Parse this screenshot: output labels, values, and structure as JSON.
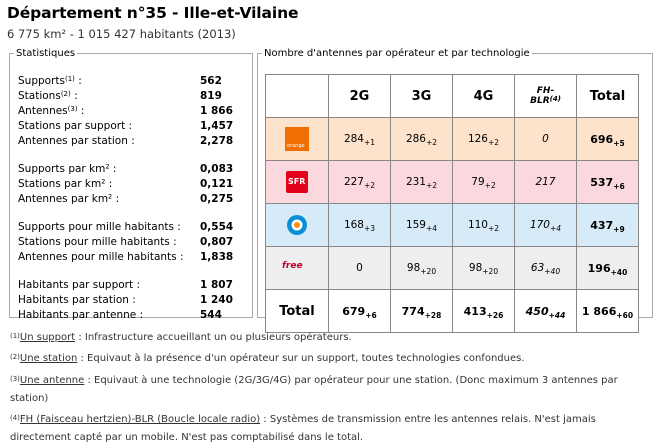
{
  "header": {
    "title": "Département n°35 - Ille-et-Vilaine",
    "subtitle": "6 775 km² - 1 015 427 habitants (2013)"
  },
  "stats": {
    "legend": "Statistiques",
    "rows": [
      {
        "label": "Supports",
        "sup": "(1)",
        "suffix": " :",
        "value": "562"
      },
      {
        "label": "Stations",
        "sup": "(2)",
        "suffix": " :",
        "value": "819"
      },
      {
        "label": "Antennes",
        "sup": "(3)",
        "suffix": " :",
        "value": "1 866"
      },
      {
        "label": "Stations par support :",
        "sup": "",
        "suffix": "",
        "value": "1,457"
      },
      {
        "label": "Antennes par station :",
        "sup": "",
        "suffix": "",
        "value": "2,278"
      },
      {
        "label": "Supports par km² :",
        "sup": "",
        "suffix": "",
        "value": "0,083"
      },
      {
        "label": "Stations par km² :",
        "sup": "",
        "suffix": "",
        "value": "0,121"
      },
      {
        "label": "Antennes par km² :",
        "sup": "",
        "suffix": "",
        "value": "0,275"
      },
      {
        "label": "Supports pour mille habitants :",
        "sup": "",
        "suffix": "",
        "value": "0,554"
      },
      {
        "label": "Stations pour mille habitants :",
        "sup": "",
        "suffix": "",
        "value": "0,807"
      },
      {
        "label": "Antennes pour mille habitants :",
        "sup": "",
        "suffix": "",
        "value": "1,838"
      },
      {
        "label": "Habitants par support :",
        "sup": "",
        "suffix": "",
        "value": "1 807"
      },
      {
        "label": "Habitants par station :",
        "sup": "",
        "suffix": "",
        "value": "1 240"
      },
      {
        "label": "Habitants par antenne :",
        "sup": "",
        "suffix": "",
        "value": "544"
      }
    ]
  },
  "antennas": {
    "legend": "Nombre d'antennes par opérateur et par technologie",
    "headers": {
      "g2": "2G",
      "g3": "3G",
      "g4": "4G",
      "fh1": "FH-",
      "fh2": "BLR",
      "fh_sup": "(4)",
      "total": "Total"
    },
    "operators": [
      {
        "logo": "orange",
        "logo_text": "orange",
        "g2": "284",
        "g2d": "+1",
        "g3": "286",
        "g3d": "+2",
        "g4": "126",
        "g4d": "+2",
        "fh": "0",
        "fhd": "",
        "total": "696",
        "totald": "+5"
      },
      {
        "logo": "sfr",
        "logo_text": "SFR",
        "g2": "227",
        "g2d": "+2",
        "g3": "231",
        "g3d": "+2",
        "g4": "79",
        "g4d": "+2",
        "fh": "217",
        "fhd": "",
        "total": "537",
        "totald": "+6"
      },
      {
        "logo": "bouygues",
        "logo_text": "",
        "g2": "168",
        "g2d": "+3",
        "g3": "159",
        "g3d": "+4",
        "g4": "110",
        "g4d": "+2",
        "fh": "170",
        "fhd": "+4",
        "total": "437",
        "totald": "+9"
      },
      {
        "logo": "free",
        "logo_text": "free",
        "g2": "0",
        "g2d": "",
        "g3": "98",
        "g3d": "+20",
        "g4": "98",
        "g4d": "+20",
        "fh": "63",
        "fhd": "+40",
        "total": "196",
        "totald": "+40"
      }
    ],
    "totals": {
      "label": "Total",
      "g2": "679",
      "g2d": "+6",
      "g3": "774",
      "g3d": "+28",
      "g4": "413",
      "g4d": "+26",
      "fh": "450",
      "fhd": "+44",
      "total": "1 866",
      "totald": "+60"
    }
  },
  "footnotes": [
    {
      "num": "(1)",
      "term": "Un support",
      "text": " : Infrastructure accueillant un ou plusieurs opérateurs."
    },
    {
      "num": "(2)",
      "term": "Une station",
      "text": " : Equivaut à la présence d'un opérateur sur un support, toutes technologies confondues."
    },
    {
      "num": "(3)",
      "term": "Une antenne",
      "text": " : Equivaut à une technologie (2G/3G/4G) par opérateur pour une station. (Donc maximum 3 antennes par station)"
    },
    {
      "num": "(4)",
      "term": "FH (Faisceau hertzien)-BLR (Boucle locale radio)",
      "text": " : Systèmes de transmission entre les antennes relais. N'est jamais directement capté par un mobile. N'est pas comptabilisé dans le total."
    }
  ],
  "colors": {
    "orange": "#f16e00",
    "sfr": "#e2001a",
    "bouygues": "#0a8fd4",
    "free": "#c0002a"
  }
}
